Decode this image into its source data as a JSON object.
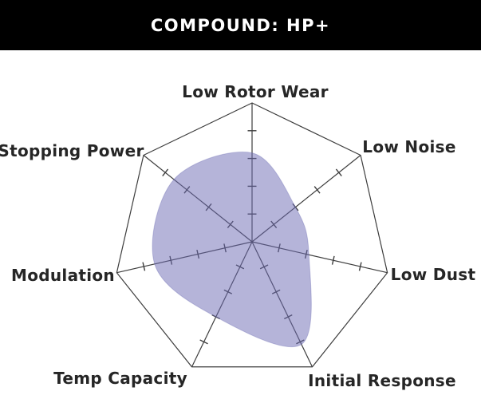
{
  "header": {
    "title": "COMPOUND: HP+"
  },
  "chart_data": {
    "type": "radar",
    "title": "COMPOUND: HP+",
    "categories": [
      "Low Rotor Wear",
      "Low Noise",
      "Low Dust",
      "Initial Response",
      "Temp Capacity",
      "Modulation",
      "Stopping Power"
    ],
    "values": [
      3.2,
      2.0,
      2.1,
      4.1,
      3.0,
      3.6,
      3.6
    ],
    "scale": {
      "min": 0,
      "max": 5,
      "tick_positions": [
        1,
        2,
        3,
        4
      ]
    },
    "legend_position": "none",
    "grid": "single outer heptagon, 7 radial axes, 4 cross ticks per axis",
    "colors": {
      "fill": "#6b69b3",
      "fill_opacity": 0.5,
      "line": "#3d3d3d",
      "label": "#262626",
      "header_bg": "#000000",
      "header_text": "#ffffff"
    }
  }
}
